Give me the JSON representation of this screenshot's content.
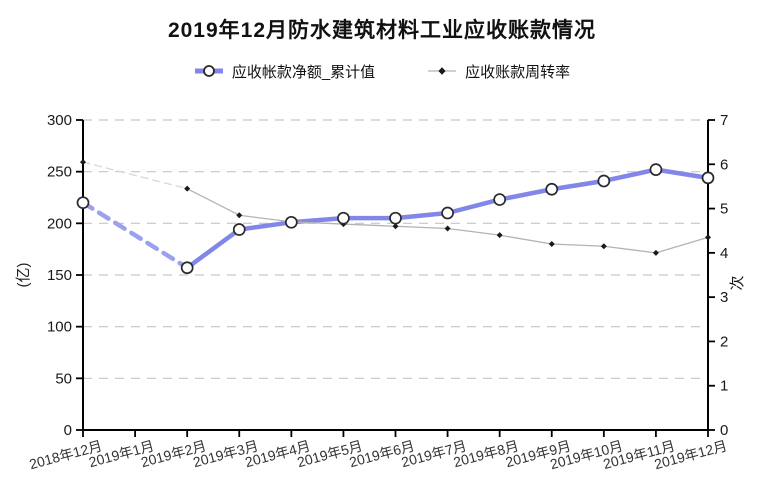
{
  "title": "2019年12月防水建筑材料工业应收账款情况",
  "legend": [
    {
      "label": "应收帐款净额_累计值"
    },
    {
      "label": "应收账款周转率"
    }
  ],
  "colors": {
    "net_line": "#8186e8",
    "net_line_dashed": "#9ba1ee",
    "net_marker_fill": "#ffffff",
    "net_marker_stroke": "#2a2a2a",
    "turnover_line": "#b3b3b3",
    "turnover_line_dashed": "#d8d8d8",
    "turnover_marker": "#1a1a1a",
    "grid": "#c6c6c6",
    "axis": "#000000",
    "tick_text": "#1a1a1a",
    "xlabel_text": "#333333"
  },
  "chart_data": {
    "type": "line",
    "categories": [
      "2018年12月",
      "2019年1月",
      "2019年2月",
      "2019年3月",
      "2019年4月",
      "2019年5月",
      "2019年6月",
      "2019年7月",
      "2019年8月",
      "2019年9月",
      "2019年10月",
      "2019年11月",
      "2019年12月"
    ],
    "series": [
      {
        "name": "应收帐款净额_累计值",
        "axis": "left",
        "marker": "circle",
        "values": [
          220,
          null,
          157,
          194,
          201,
          205,
          205,
          210,
          223,
          233,
          241,
          252,
          244
        ]
      },
      {
        "name": "应收账款周转率",
        "axis": "right",
        "marker": "dot",
        "values": [
          6.05,
          null,
          5.45,
          4.85,
          4.7,
          4.65,
          4.6,
          4.55,
          4.4,
          4.2,
          4.15,
          4.0,
          4.35
        ]
      }
    ],
    "left_axis": {
      "label": "(亿)",
      "min": 0,
      "max": 300,
      "ticks": [
        0,
        50,
        100,
        150,
        200,
        250,
        300
      ]
    },
    "right_axis": {
      "label": "次",
      "min": 0,
      "max": 7,
      "ticks": [
        0,
        1,
        2,
        3,
        4,
        5,
        6,
        7
      ]
    },
    "grid": true,
    "legend_position": "top",
    "note": "January 2019 value missing; gap rendered as dashed segment"
  }
}
